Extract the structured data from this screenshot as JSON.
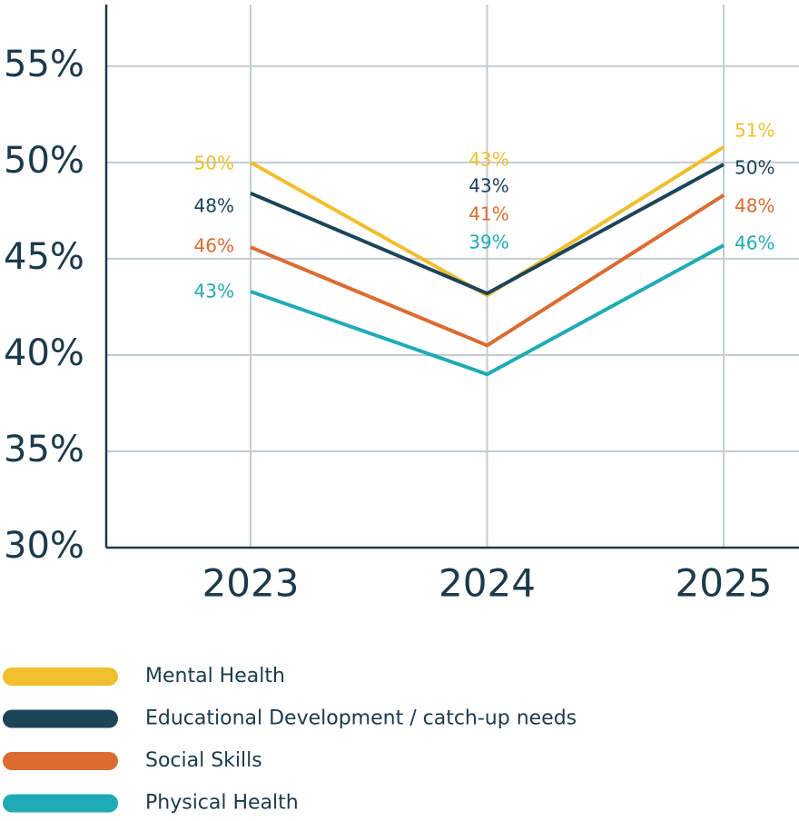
{
  "chart_data": {
    "type": "line",
    "categories": [
      "2023",
      "2024",
      "2025"
    ],
    "series": [
      {
        "name": "Mental Health",
        "color": "#f0bf2e",
        "values": [
          50,
          43.1,
          50.8
        ],
        "value_labels": [
          "50%",
          "43%",
          "51%"
        ]
      },
      {
        "name": "Educational Development / catch-up needs",
        "color": "#1b4459",
        "values": [
          48.4,
          43.2,
          49.9
        ],
        "value_labels": [
          "48%",
          "43%",
          "50%"
        ]
      },
      {
        "name": "Social Skills",
        "color": "#dc6b2f",
        "values": [
          45.6,
          40.5,
          48.3
        ],
        "value_labels": [
          "46%",
          "41%",
          "48%"
        ]
      },
      {
        "name": "Physical Health",
        "color": "#1fabb5",
        "values": [
          43.3,
          39.0,
          45.7
        ],
        "value_labels": [
          "43%",
          "39%",
          "46%"
        ]
      }
    ],
    "ylim": [
      30,
      58.2
    ],
    "yticks": [
      {
        "value": 30,
        "label": "30%"
      },
      {
        "value": 35,
        "label": "35%"
      },
      {
        "value": 40,
        "label": "40%"
      },
      {
        "value": 45,
        "label": "45%"
      },
      {
        "value": 50,
        "label": "50%"
      },
      {
        "value": 55,
        "label": "55%"
      }
    ],
    "grid": true
  }
}
